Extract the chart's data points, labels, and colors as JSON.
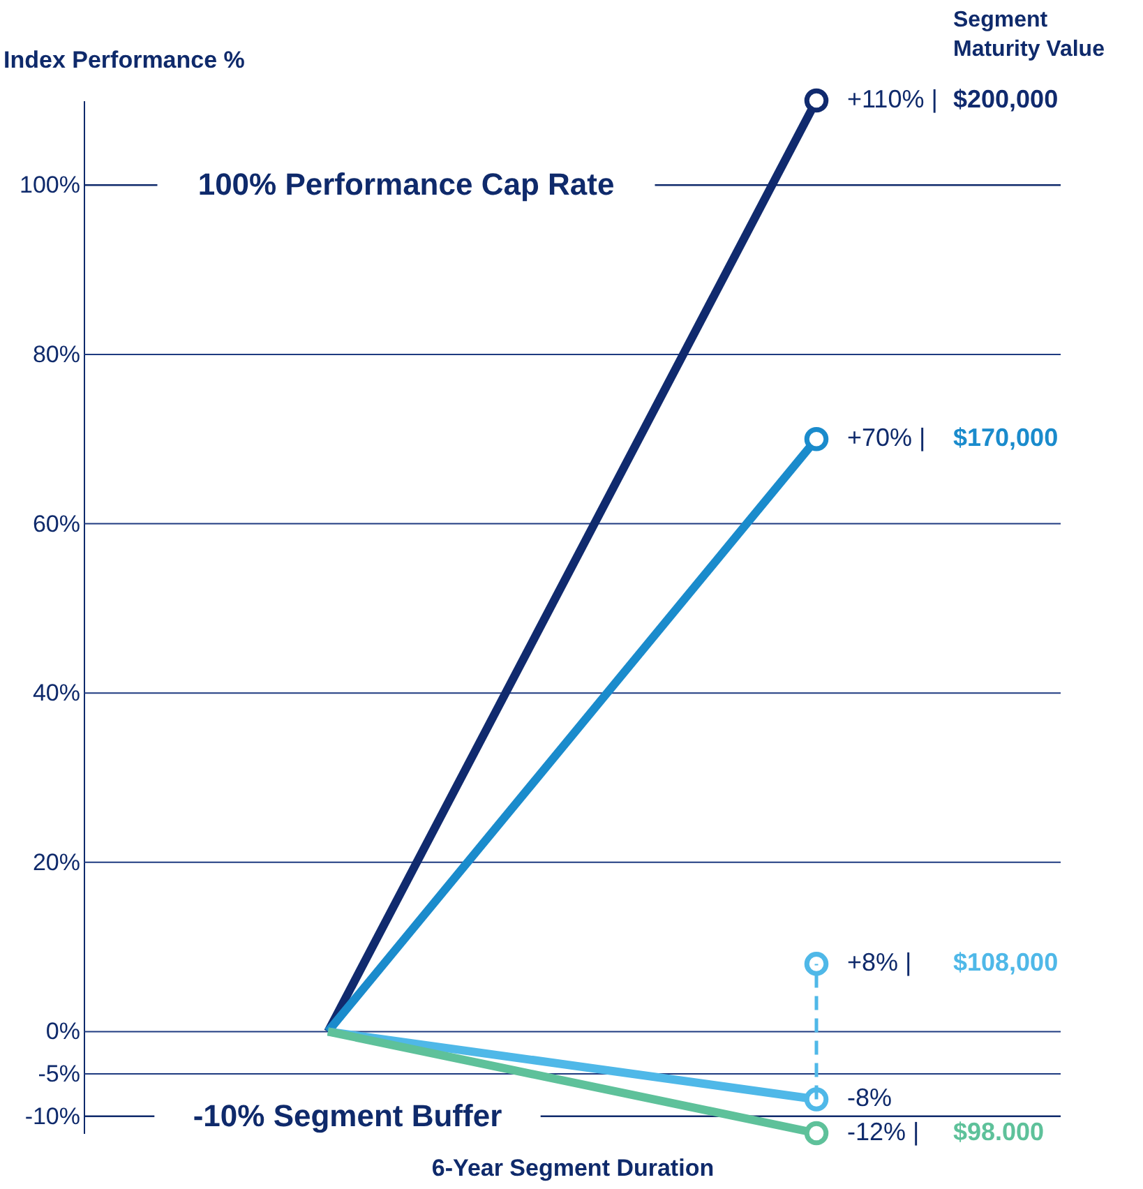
{
  "chart_data": {
    "type": "line",
    "ylabel": "Index Performance %",
    "xlabel": "6-Year Segment Duration",
    "categories": [
      null,
      null
    ],
    "ylim": [
      -12,
      110
    ],
    "yticks": [
      {
        "value": -10,
        "label": "-10%"
      },
      {
        "value": -5,
        "label": "-5%"
      },
      {
        "value": 0,
        "label": "0%"
      },
      {
        "value": 20,
        "label": "20%"
      },
      {
        "value": 40,
        "label": "40%"
      },
      {
        "value": 60,
        "label": "60%"
      },
      {
        "value": 80,
        "label": "80%"
      },
      {
        "value": 100,
        "label": "100%"
      }
    ],
    "grid": "y",
    "marker": "circle",
    "line_style": "solid",
    "series": [
      {
        "color": "#102a6e",
        "values": [
          0,
          110
        ],
        "value_labels": [
          null,
          "+110%  |  $200,000"
        ]
      },
      {
        "color": "#1a8bcc",
        "values": [
          0,
          70
        ],
        "value_labels": [
          null,
          "+70%  |  $170,000"
        ]
      },
      {
        "color": "#4fb8e8",
        "values": [
          0,
          -8
        ],
        "value_labels": [
          null,
          "-8%"
        ]
      },
      {
        "color": "#5ec19a",
        "values": [
          0,
          -12
        ],
        "value_labels": [
          null,
          "-12%  |  $98.000"
        ]
      },
      {
        "type": "scatter",
        "color": "#4fb8e8",
        "values": [
          null,
          8
        ],
        "errors": [
          null,
          [
            -8,
            8
          ]
        ],
        "value_labels": [
          null,
          "+8%  |  $108,000"
        ]
      }
    ],
    "ref_lines": [
      {
        "axis": "y",
        "value": 100,
        "label": "100% Performance Cap Rate"
      },
      {
        "axis": "y",
        "value": -10,
        "label": "-10% Segment Buffer"
      }
    ],
    "annotations": [
      "Segment Maturity Value"
    ]
  }
}
